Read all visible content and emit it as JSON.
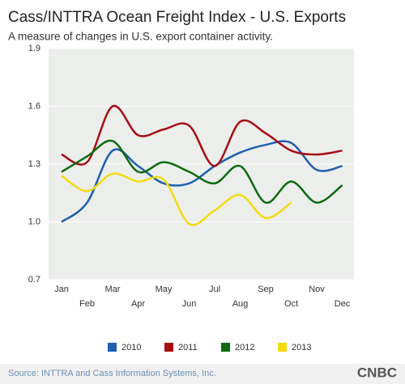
{
  "chart_data": {
    "type": "line",
    "title": "Cass/INTTRA Ocean Freight Index - U.S. Exports",
    "subtitle": "A measure of changes in U.S. export container activity.",
    "source": "Source: INTTRA and Cass Information Systems, Inc.",
    "logo": "CNBC",
    "categories": [
      "Jan",
      "Feb",
      "Mar",
      "Apr",
      "May",
      "Jun",
      "Jul",
      "Aug",
      "Sep",
      "Oct",
      "Nov",
      "Dec"
    ],
    "series": [
      {
        "name": "2010",
        "color": "#1f5fae",
        "values": [
          1.0,
          1.1,
          1.37,
          1.29,
          1.2,
          1.2,
          1.29,
          1.36,
          1.4,
          1.41,
          1.27,
          1.29
        ]
      },
      {
        "name": "2011",
        "color": "#a50f12",
        "values": [
          1.35,
          1.31,
          1.6,
          1.45,
          1.48,
          1.5,
          1.29,
          1.52,
          1.46,
          1.37,
          1.35,
          1.37
        ]
      },
      {
        "name": "2012",
        "color": "#0e6b0e",
        "values": [
          1.26,
          1.34,
          1.42,
          1.26,
          1.31,
          1.26,
          1.2,
          1.29,
          1.1,
          1.21,
          1.1,
          1.19
        ]
      },
      {
        "name": "2013",
        "color": "#f2dc10",
        "values": [
          1.24,
          1.16,
          1.25,
          1.21,
          1.22,
          0.99,
          1.06,
          1.14,
          1.02,
          1.1,
          null,
          null
        ]
      }
    ],
    "ylim": [
      0.7,
      1.9
    ],
    "yticks": [
      0.7,
      {
        "value": 1,
        "label": "1.0"
      },
      1.3,
      1.6,
      1.9
    ],
    "grid": true
  }
}
